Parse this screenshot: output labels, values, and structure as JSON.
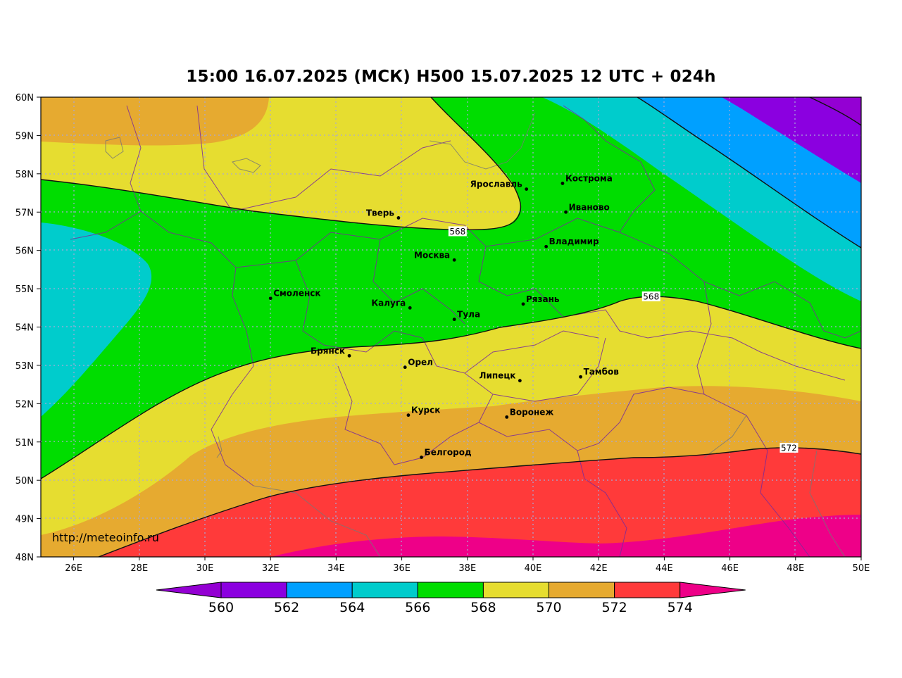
{
  "title": "15:00 16.07.2025 (МСК) H500  15.07.2025 12 UTC + 024h",
  "watermark": "http://meteoinfo.ru",
  "lat_labels": [
    "60N",
    "59N",
    "58N",
    "57N",
    "56N",
    "55N",
    "54N",
    "53N",
    "52N",
    "51N",
    "50N",
    "49N",
    "48N"
  ],
  "lon_labels": [
    "26E",
    "28E",
    "30E",
    "32E",
    "34E",
    "36E",
    "38E",
    "40E",
    "42E",
    "44E",
    "46E",
    "48E",
    "50E"
  ],
  "cities": [
    {
      "name": "Ярославль",
      "lon": 39.8,
      "lat": 57.6
    },
    {
      "name": "Кострома",
      "lon": 40.9,
      "lat": 57.75
    },
    {
      "name": "Иваново",
      "lon": 41.0,
      "lat": 57.0
    },
    {
      "name": "Тверь",
      "lon": 35.9,
      "lat": 56.85
    },
    {
      "name": "Владимир",
      "lon": 40.4,
      "lat": 56.1
    },
    {
      "name": "Москва",
      "lon": 37.6,
      "lat": 55.75
    },
    {
      "name": "Смоленск",
      "lon": 32.0,
      "lat": 54.75
    },
    {
      "name": "Калуга",
      "lon": 36.25,
      "lat": 54.5
    },
    {
      "name": "Рязань",
      "lon": 39.7,
      "lat": 54.6
    },
    {
      "name": "Тула",
      "lon": 37.6,
      "lat": 54.2
    },
    {
      "name": "Брянск",
      "lon": 34.4,
      "lat": 53.25
    },
    {
      "name": "Орел",
      "lon": 36.1,
      "lat": 52.95
    },
    {
      "name": "Липецк",
      "lon": 39.6,
      "lat": 52.6
    },
    {
      "name": "Тамбов",
      "lon": 41.45,
      "lat": 52.7
    },
    {
      "name": "Курск",
      "lon": 36.2,
      "lat": 51.7
    },
    {
      "name": "Воронеж",
      "lon": 39.2,
      "lat": 51.65
    },
    {
      "name": "Белгород",
      "lon": 36.6,
      "lat": 50.6
    }
  ],
  "isoline_labels": [
    {
      "text": "568",
      "lon": 37.7,
      "lat": 56.5
    },
    {
      "text": "568",
      "lon": 43.6,
      "lat": 54.8
    },
    {
      "text": "572",
      "lon": 47.8,
      "lat": 50.85
    }
  ],
  "colorbar": {
    "labels": [
      "560",
      "562",
      "564",
      "566",
      "568",
      "570",
      "572",
      "574"
    ],
    "colors": [
      "#9400d3",
      "#8b00e0",
      "#00a0ff",
      "#00cccc",
      "#00dd00",
      "#e6dd30",
      "#e6aa30",
      "#ff3a3a",
      "#ee0088"
    ]
  },
  "legend_colors": {
    "c562": "#8b00e0",
    "c564": "#00a0ff",
    "c566": "#00cccc",
    "c568": "#00dd00",
    "c570": "#e6dd30",
    "c572": "#e6aa30",
    "c574": "#ff3a3a",
    "c576": "#ee0088"
  }
}
